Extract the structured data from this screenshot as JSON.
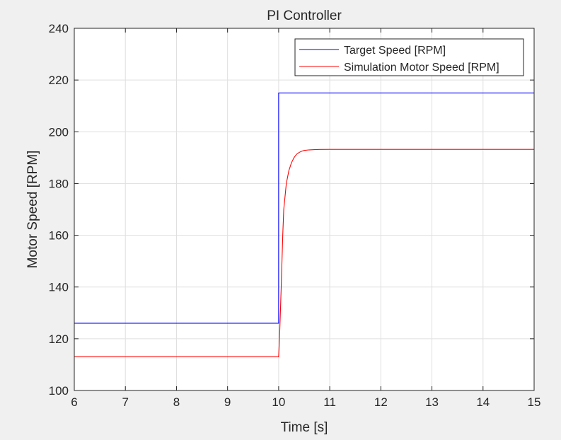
{
  "chart_data": {
    "type": "line",
    "title": "PI Controller",
    "xlabel": "Time [s]",
    "ylabel": "Motor Speed [RPM]",
    "xlim": [
      6,
      15
    ],
    "ylim": [
      100,
      240
    ],
    "xticks": [
      6,
      7,
      8,
      9,
      10,
      11,
      12,
      13,
      14,
      15
    ],
    "yticks": [
      100,
      120,
      140,
      160,
      180,
      200,
      220,
      240
    ],
    "grid": true,
    "legend_position": "top-right",
    "series": [
      {
        "name": "Target Speed [RPM]",
        "color": "#0000ff",
        "x": [
          6,
          10,
          10,
          15
        ],
        "y": [
          126,
          126,
          215,
          215
        ]
      },
      {
        "name": "Simulation Motor Speed [RPM]",
        "color": "#ff0000",
        "x": [
          6,
          10,
          10.02,
          10.05,
          10.08,
          10.1,
          10.15,
          10.2,
          10.25,
          10.3,
          10.35,
          10.4,
          10.45,
          10.5,
          10.6,
          10.7,
          10.8,
          11,
          12,
          15
        ],
        "y": [
          113,
          113,
          122,
          140,
          160,
          170,
          180,
          185,
          188,
          190,
          191.3,
          192,
          192.5,
          192.8,
          193,
          193.1,
          193.15,
          193.2,
          193.2,
          193.2
        ]
      }
    ]
  }
}
